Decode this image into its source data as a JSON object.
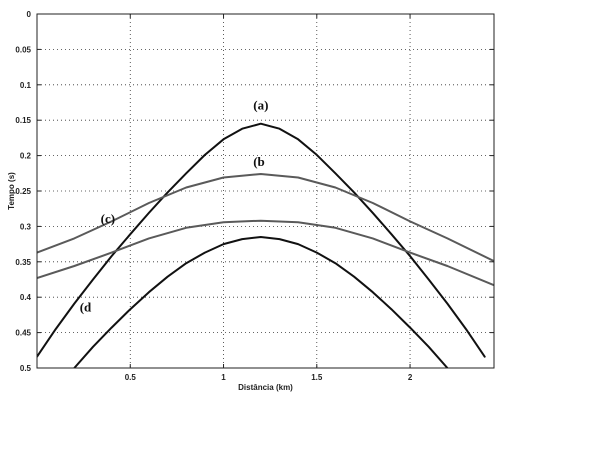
{
  "chart_data": {
    "type": "line",
    "title": "",
    "xlabel": "Distância (km)",
    "ylabel": "Tempo (s)",
    "xlim": [
      0,
      2.45
    ],
    "ylim": [
      0,
      0.5
    ],
    "y_inverted": true,
    "grid": true,
    "grid_style": "dotted",
    "x_ticks": [
      0.5,
      1,
      1.5,
      2
    ],
    "x_tick_labels": [
      "0.5",
      "1",
      "1.5",
      "2"
    ],
    "y_ticks": [
      0,
      0.05,
      0.1,
      0.15,
      0.2,
      0.25,
      0.3,
      0.35,
      0.4,
      0.45,
      0.5
    ],
    "y_tick_labels": [
      "0",
      "0.05",
      "0.1",
      "0.15",
      "0.2",
      "0.25",
      "0.3",
      "0.35",
      "0.4",
      "0.45",
      "0.5"
    ],
    "series": [
      {
        "name": "(a)",
        "color": "#111111",
        "x": [
          0.0,
          0.1,
          0.2,
          0.3,
          0.4,
          0.5,
          0.6,
          0.7,
          0.8,
          0.9,
          1.0,
          1.1,
          1.2,
          1.3,
          1.4,
          1.5,
          1.6,
          1.7,
          1.8,
          1.9,
          2.0,
          2.1,
          2.2,
          2.3,
          2.4
        ],
        "y": [
          0.484,
          0.445,
          0.409,
          0.375,
          0.342,
          0.311,
          0.281,
          0.252,
          0.225,
          0.199,
          0.177,
          0.162,
          0.155,
          0.162,
          0.177,
          0.199,
          0.225,
          0.252,
          0.281,
          0.311,
          0.342,
          0.375,
          0.409,
          0.445,
          0.484
        ]
      },
      {
        "name": "(b)",
        "color": "#5a5a5a",
        "x": [
          0.0,
          0.2,
          0.4,
          0.6,
          0.8,
          1.0,
          1.2,
          1.4,
          1.6,
          1.8,
          2.0,
          2.2,
          2.45
        ],
        "y": [
          0.337,
          0.317,
          0.293,
          0.267,
          0.245,
          0.231,
          0.226,
          0.231,
          0.245,
          0.267,
          0.293,
          0.317,
          0.349
        ]
      },
      {
        "name": "(c)",
        "color": "#5a5a5a",
        "x": [
          0.0,
          0.2,
          0.4,
          0.6,
          0.8,
          1.0,
          1.2,
          1.4,
          1.6,
          1.8,
          2.0,
          2.2,
          2.45
        ],
        "y": [
          0.373,
          0.356,
          0.337,
          0.317,
          0.302,
          0.294,
          0.292,
          0.294,
          0.302,
          0.317,
          0.337,
          0.356,
          0.383
        ]
      },
      {
        "name": "(d)",
        "color": "#111111",
        "x": [
          0.2,
          0.3,
          0.4,
          0.5,
          0.6,
          0.7,
          0.8,
          0.9,
          1.0,
          1.1,
          1.2,
          1.3,
          1.4,
          1.5,
          1.6,
          1.7,
          1.8,
          1.9,
          2.0,
          2.1,
          2.2
        ],
        "y": [
          0.5,
          0.47,
          0.443,
          0.417,
          0.393,
          0.371,
          0.352,
          0.337,
          0.325,
          0.318,
          0.315,
          0.318,
          0.325,
          0.337,
          0.352,
          0.371,
          0.393,
          0.417,
          0.443,
          0.47,
          0.5
        ]
      }
    ],
    "annotations": [
      {
        "text": "(a)",
        "series": "(a)",
        "x": 1.2,
        "y": 0.135
      },
      {
        "text": "(b",
        "series": "(b)",
        "x": 1.19,
        "y": 0.215
      },
      {
        "text": "(c)",
        "series": "(c)",
        "x": 0.38,
        "y": 0.295
      },
      {
        "text": "(d",
        "series": "(d)",
        "x": 0.26,
        "y": 0.42
      }
    ]
  }
}
